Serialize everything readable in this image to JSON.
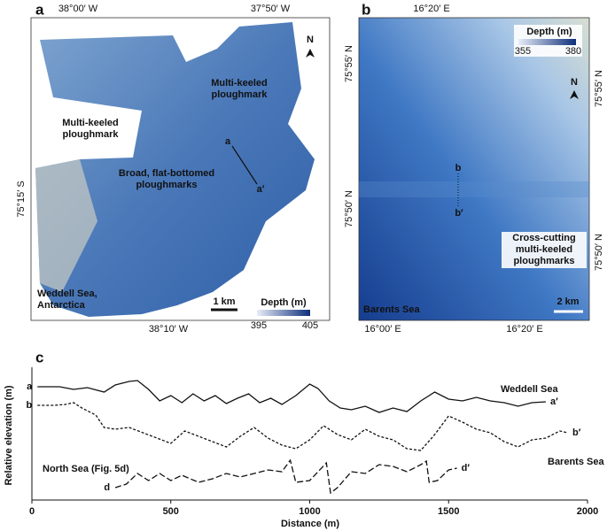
{
  "panel_a": {
    "label": "a",
    "top_lon_left": "38°00′ W",
    "top_lon_right": "37°50′ W",
    "left_lat": "75°15′ S",
    "bottom_lon": "38°10′ W",
    "north": "N",
    "annotation_top": "Multi-keeled ploughmark",
    "annotation_left": "Multi-keeled ploughmark",
    "annotation_middle": "Broad, flat-bottomed ploughmarks",
    "profile_start": "a",
    "profile_end": "a′",
    "location": "Weddell Sea, Antarctica",
    "scale": "1 km",
    "depth_title": "Depth (m)",
    "depth_min": "395",
    "depth_max": "405"
  },
  "panel_b": {
    "label": "b",
    "top_lon": "16°20′ E",
    "left_lat_top": "75°55′ N",
    "left_lat_bottom": "75°50′ N",
    "right_lat_top": "75°55′ N",
    "right_lat_bottom": "75°50′ N",
    "bottom_lon_left": "16°00′ E",
    "bottom_lon_right": "16°20′ E",
    "depth_title": "Depth (m)",
    "depth_min": "355",
    "depth_max": "380",
    "north": "N",
    "profile_start": "b",
    "profile_end": "b′",
    "annotation": "Cross-cutting multi-keeled ploughmarks",
    "location": "Barents Sea",
    "scale": "2 km"
  },
  "chart_data": {
    "type": "line",
    "panel_label": "c",
    "x_label": "Distance (m)",
    "y_label": "Relative elevation (m)",
    "xlim": [
      0,
      2000
    ],
    "xticks": [
      0,
      500,
      1000,
      1500,
      2000
    ],
    "ylim": [
      0,
      150
    ],
    "series": [
      {
        "name": "Weddell Sea",
        "start_label": "a",
        "end_label": "a′",
        "color": "#111111",
        "line_style": "solid",
        "x": [
          20,
          100,
          150,
          200,
          260,
          300,
          350,
          380,
          420,
          460,
          500,
          540,
          580,
          620,
          660,
          700,
          740,
          780,
          820,
          860,
          900,
          950,
          1000,
          1030,
          1070,
          1110,
          1150,
          1200,
          1250,
          1300,
          1350,
          1400,
          1450,
          1500,
          1550,
          1600,
          1650,
          1700,
          1750,
          1800,
          1850
        ],
        "values": [
          128,
          128,
          125,
          127,
          122,
          130,
          134,
          135,
          125,
          112,
          118,
          110,
          120,
          112,
          118,
          109,
          115,
          120,
          110,
          115,
          108,
          118,
          131,
          126,
          112,
          104,
          102,
          106,
          99,
          104,
          100,
          112,
          122,
          114,
          112,
          116,
          112,
          110,
          106,
          110,
          111
        ]
      },
      {
        "name": "Barents Sea",
        "start_label": "b",
        "end_label": "b′",
        "color": "#111111",
        "line_style": "dotted",
        "x": [
          20,
          80,
          120,
          150,
          180,
          230,
          260,
          300,
          350,
          400,
          450,
          500,
          550,
          600,
          650,
          700,
          750,
          800,
          850,
          900,
          950,
          1000,
          1050,
          1100,
          1150,
          1200,
          1250,
          1300,
          1350,
          1400,
          1450,
          1500,
          1550,
          1600,
          1650,
          1700,
          1750,
          1800,
          1850,
          1900,
          1930
        ],
        "values": [
          107,
          107,
          108,
          110,
          104,
          96,
          82,
          80,
          82,
          76,
          70,
          64,
          78,
          72,
          66,
          60,
          72,
          82,
          70,
          62,
          58,
          68,
          84,
          74,
          68,
          80,
          72,
          68,
          58,
          56,
          74,
          95,
          88,
          80,
          76,
          66,
          60,
          68,
          70,
          78,
          76
        ]
      },
      {
        "name": "North Sea (Fig. 5d)",
        "start_label": "d",
        "end_label": "d′",
        "color": "#111111",
        "line_style": "dashed",
        "x": [
          300,
          340,
          380,
          420,
          460,
          500,
          540,
          600,
          650,
          700,
          750,
          800,
          850,
          900,
          930,
          950,
          1000,
          1060,
          1075,
          1100,
          1150,
          1200,
          1250,
          1300,
          1350,
          1400,
          1420,
          1430,
          1460,
          1500,
          1530
        ],
        "values": [
          14,
          18,
          30,
          22,
          30,
          22,
          28,
          20,
          24,
          30,
          26,
          30,
          34,
          32,
          45,
          20,
          22,
          42,
          8,
          14,
          32,
          30,
          40,
          38,
          32,
          40,
          44,
          20,
          22,
          34,
          36
        ]
      }
    ]
  }
}
